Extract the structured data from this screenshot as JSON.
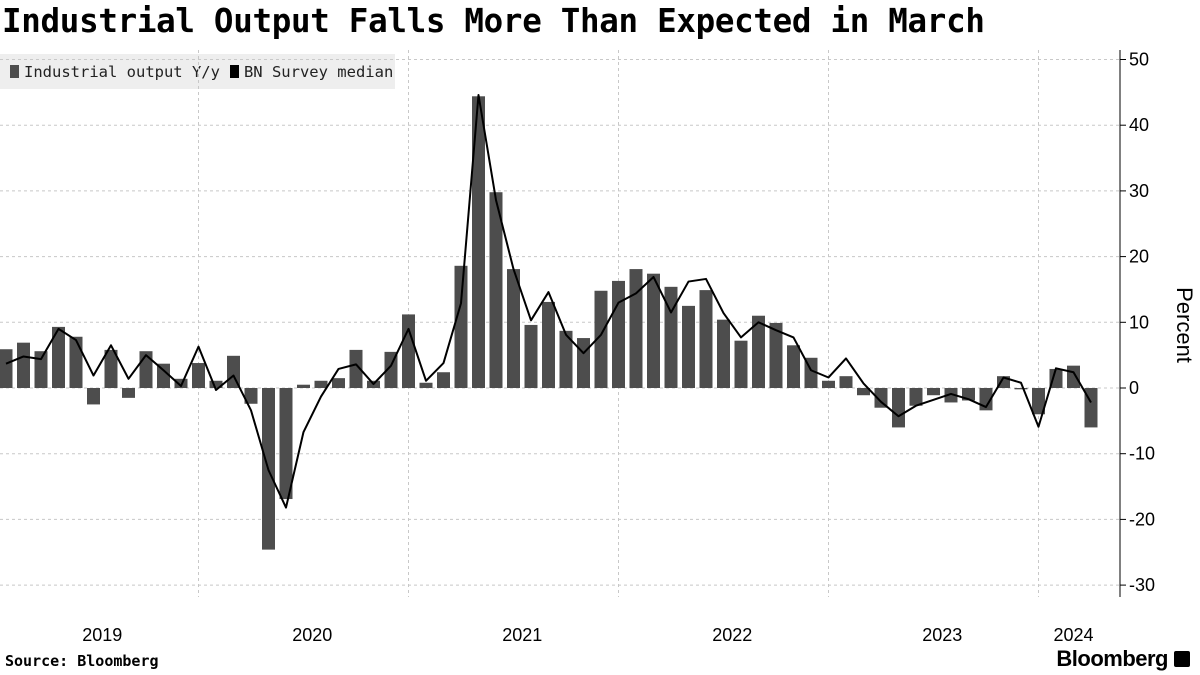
{
  "chart_data": {
    "type": "bar",
    "title": "Industrial Output Falls More Than Expected in March",
    "ylabel": "Percent",
    "xlabel": "",
    "ylim": [
      -31.5,
      51.5
    ],
    "yticks": [
      50,
      40,
      30,
      20,
      10,
      0,
      -10,
      -20,
      -30
    ],
    "xtick_labels": [
      "2019",
      "2020",
      "2021",
      "2022",
      "2023",
      "2024"
    ],
    "x_start": "2019-01",
    "x_end": "2024-03",
    "frequency": "monthly",
    "grid": true,
    "legend_position": "top-left",
    "series": [
      {
        "name": "Industrial output Y/y",
        "type": "bar",
        "color": "#4d4d4d",
        "values": [
          5.9,
          6.9,
          5.6,
          9.3,
          7.8,
          -2.5,
          5.8,
          -1.5,
          5.6,
          3.7,
          1.4,
          3.8,
          1.1,
          4.9,
          -2.4,
          -24.6,
          -16.9,
          0.5,
          1.1,
          1.5,
          5.8,
          1.1,
          5.5,
          11.2,
          0.8,
          2.4,
          18.6,
          44.4,
          29.8,
          18.1,
          9.6,
          13.1,
          8.7,
          7.6,
          14.8,
          16.3,
          18.1,
          17.4,
          15.4,
          12.5,
          14.9,
          10.4,
          7.2,
          11.0,
          9.9,
          6.5,
          4.6,
          1.1,
          1.8,
          -1.1,
          -3.0,
          -6.0,
          -2.7,
          -1.1,
          -2.2,
          -1.9,
          -3.4,
          1.8,
          -0.2,
          -4.0,
          2.9,
          3.4,
          -6.0
        ]
      },
      {
        "name": "BN Survey median",
        "type": "line",
        "color": "#000000",
        "values": [
          3.7,
          4.8,
          4.4,
          9.0,
          7.3,
          1.9,
          6.5,
          1.4,
          5.0,
          2.7,
          0.3,
          6.3,
          -0.3,
          1.9,
          -3.4,
          -12.5,
          -18.2,
          -6.7,
          -1.3,
          2.9,
          3.6,
          0.6,
          3.4,
          9.0,
          1.1,
          3.8,
          12.9,
          44.6,
          28.6,
          18.1,
          10.3,
          14.6,
          8.1,
          5.3,
          8.1,
          13.0,
          14.4,
          16.9,
          11.5,
          16.2,
          16.6,
          11.4,
          7.7,
          10.0,
          8.8,
          7.7,
          2.7,
          1.6,
          4.5,
          0.7,
          -2.1,
          -4.3,
          -2.7,
          -1.8,
          -0.9,
          -1.7,
          -2.9,
          1.6,
          0.8,
          -5.9,
          3.0,
          2.4,
          -2.2
        ]
      }
    ]
  },
  "footer": {
    "source": "Source: Bloomberg",
    "logo": "Bloomberg"
  }
}
